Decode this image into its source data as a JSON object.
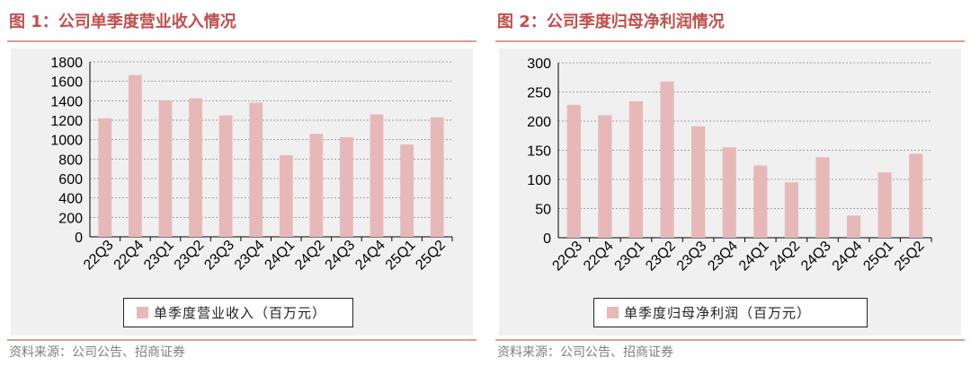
{
  "colors": {
    "bar": "#e6b9b8",
    "title": "#c0504d",
    "rule": "#d9a090",
    "grid": "#9e9e9e"
  },
  "chart_data": [
    {
      "type": "bar",
      "title": "图 1：公司单季度营业收入情况",
      "categories": [
        "22Q3",
        "22Q4",
        "23Q1",
        "23Q2",
        "23Q3",
        "23Q4",
        "24Q1",
        "24Q2",
        "24Q3",
        "24Q4",
        "25Q1",
        "25Q2"
      ],
      "series": [
        {
          "name": "单季度营业收入（百万元）",
          "values": [
            1220,
            1665,
            1405,
            1425,
            1250,
            1380,
            840,
            1060,
            1025,
            1260,
            950,
            1230
          ]
        }
      ],
      "ylim": [
        0,
        1800
      ],
      "yticks": [
        0,
        200,
        400,
        600,
        800,
        1000,
        1200,
        1400,
        1600,
        1800
      ],
      "grid": true,
      "legend": "bottom",
      "source": "资料来源：公司公告、招商证券"
    },
    {
      "type": "bar",
      "title": "图 2：公司季度归母净利润情况",
      "categories": [
        "22Q3",
        "22Q4",
        "23Q1",
        "23Q2",
        "23Q3",
        "23Q4",
        "24Q1",
        "24Q2",
        "24Q3",
        "24Q4",
        "25Q1",
        "25Q2"
      ],
      "series": [
        {
          "name": "单季度归母净利润（百万元）",
          "values": [
            228,
            210,
            234,
            268,
            191,
            155,
            124,
            95,
            138,
            38,
            112,
            144
          ]
        }
      ],
      "ylim": [
        0,
        300
      ],
      "yticks": [
        0,
        50,
        100,
        150,
        200,
        250,
        300
      ],
      "grid": true,
      "legend": "bottom",
      "source": "资料来源：公司公告、招商证券"
    }
  ]
}
